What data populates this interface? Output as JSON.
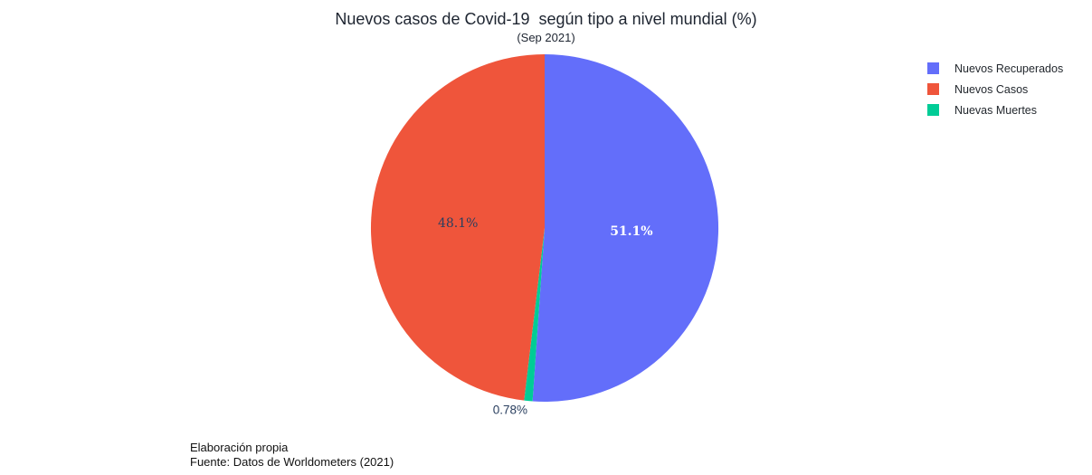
{
  "chart_data": {
    "type": "pie",
    "title": "Nuevos casos de Covid-19  según tipo a nivel mundial (%)",
    "subtitle": "(Sep 2021)",
    "labels": [
      "Nuevos Recuperados",
      "Nuevos Casos",
      "Nuevas Muertes"
    ],
    "values": [
      51.1,
      48.1,
      0.78
    ],
    "value_labels": [
      "51.1%",
      "48.1%",
      "0.78%"
    ],
    "colors": [
      "#636EFA",
      "#EF553B",
      "#00CC96"
    ],
    "legend_position": "right",
    "slice_order_clockwise_from_top": [
      0,
      2,
      1
    ],
    "label_placement": [
      "inside",
      "inside",
      "outside"
    ],
    "label_colors": [
      "#ffffff",
      "#2a3f5f",
      "#2a3f5f"
    ],
    "background": "#ffffff"
  },
  "annotations": {
    "line1": "Elaboración propia",
    "line2": "Fuente: Datos de Worldometers (2021)"
  }
}
